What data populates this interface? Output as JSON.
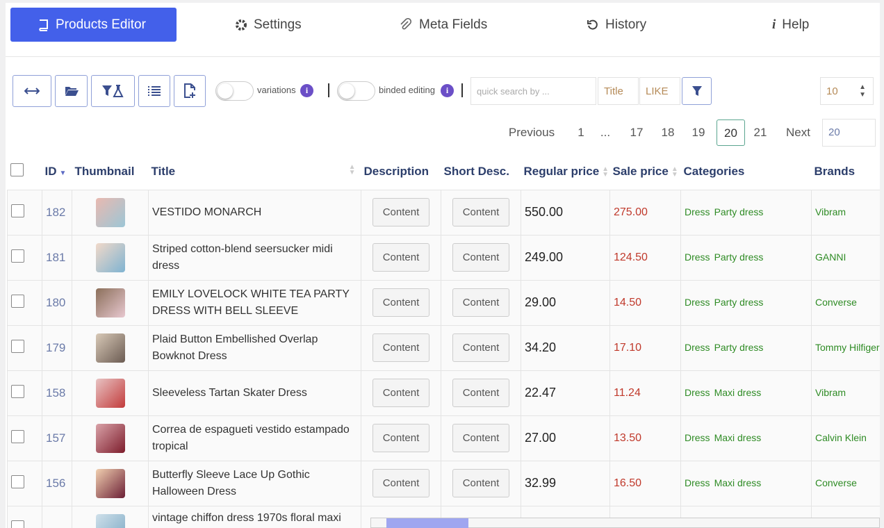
{
  "tabs": [
    "Products Editor",
    "Settings",
    "Meta Fields",
    "History",
    "Help"
  ],
  "toolbar": {
    "variations_label": "variations",
    "binded_label": "binded editing",
    "search_placeholder": "quick search by ...",
    "search_field": "Title",
    "search_operator": "LIKE",
    "per_page": 10
  },
  "pagination": {
    "previous": "Previous",
    "pages": [
      1,
      "...",
      17,
      18,
      19,
      20,
      21
    ],
    "current_index": 5,
    "next": "Next",
    "goto": 20
  },
  "table": {
    "columns": [
      "ID",
      "Thumbnail",
      "Title",
      "Description",
      "Short Desc.",
      "Regular price",
      "Sale price",
      "Categories",
      "Brands"
    ],
    "rows": [
      {
        "id": 182,
        "title": "VESTIDO MONARCH",
        "description": "Content",
        "short_desc": "Content",
        "regular_price": "550.00",
        "sale_price": "275.00",
        "categories": [
          "Dress",
          "Party dress"
        ],
        "brand": "Vibram"
      },
      {
        "id": 181,
        "title": "Striped cotton-blend seersucker midi dress",
        "description": "Content",
        "short_desc": "Content",
        "regular_price": "249.00",
        "sale_price": "124.50",
        "categories": [
          "Dress",
          "Party dress"
        ],
        "brand": "GANNI"
      },
      {
        "id": 180,
        "title": "EMILY LOVELOCK WHITE TEA PARTY DRESS WITH BELL SLEEVE",
        "description": "Content",
        "short_desc": "Content",
        "regular_price": "29.00",
        "sale_price": "14.50",
        "categories": [
          "Dress",
          "Party dress"
        ],
        "brand": "Converse"
      },
      {
        "id": 179,
        "title": "Plaid Button Embellished Overlap Bowknot Dress",
        "description": "Content",
        "short_desc": "Content",
        "regular_price": "34.20",
        "sale_price": "17.10",
        "categories": [
          "Dress",
          "Party dress"
        ],
        "brand": "Tommy Hilfiger"
      },
      {
        "id": 158,
        "title": "Sleeveless Tartan Skater Dress",
        "description": "Content",
        "short_desc": "Content",
        "regular_price": "22.47",
        "sale_price": "11.24",
        "categories": [
          "Dress",
          "Maxi dress"
        ],
        "brand": "Vibram"
      },
      {
        "id": 157,
        "title": "Correa de espagueti vestido estampado tropical",
        "description": "Content",
        "short_desc": "Content",
        "regular_price": "27.00",
        "sale_price": "13.50",
        "categories": [
          "Dress",
          "Maxi dress"
        ],
        "brand": "Calvin Klein"
      },
      {
        "id": 156,
        "title": "Butterfly Sleeve Lace Up Gothic Halloween Dress",
        "description": "Content",
        "short_desc": "Content",
        "regular_price": "32.99",
        "sale_price": "16.50",
        "categories": [
          "Dress",
          "Maxi dress"
        ],
        "brand": "Converse"
      },
      {
        "title": "vintage chiffon dress 1970s floral maxi"
      }
    ]
  }
}
